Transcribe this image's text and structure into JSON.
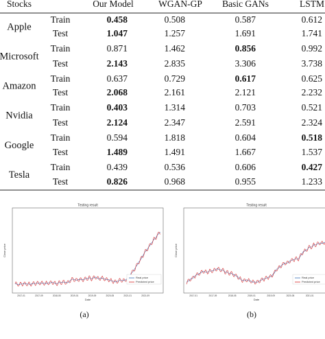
{
  "table": {
    "header": [
      "Stocks",
      "",
      "Our Model",
      "WGAN-GP",
      "Basic GANs",
      "LSTM"
    ],
    "rows": [
      {
        "stock": "Apple",
        "split": "Train",
        "values": [
          "0.458",
          "0.508",
          "0.587",
          "0.612"
        ],
        "bold": 0
      },
      {
        "split": "Test",
        "values": [
          "1.047",
          "1.257",
          "1.691",
          "1.741"
        ],
        "bold": 0
      },
      {
        "stock": "Microsoft",
        "split": "Train",
        "values": [
          "0.871",
          "1.462",
          "0.856",
          "0.992"
        ],
        "bold": 2
      },
      {
        "split": "Test",
        "values": [
          "2.143",
          "2.835",
          "3.306",
          "3.738"
        ],
        "bold": 0
      },
      {
        "stock": "Amazon",
        "split": "Train",
        "values": [
          "0.637",
          "0.729",
          "0.617",
          "0.625"
        ],
        "bold": 2
      },
      {
        "split": "Test",
        "values": [
          "2.068",
          "2.161",
          "2.121",
          "2.232"
        ],
        "bold": 0
      },
      {
        "stock": "Nvidia",
        "split": "Train",
        "values": [
          "0.403",
          "1.314",
          "0.703",
          "0.521"
        ],
        "bold": 0
      },
      {
        "split": "Test",
        "values": [
          "2.124",
          "2.347",
          "2.591",
          "2.324"
        ],
        "bold": 0
      },
      {
        "stock": "Google",
        "split": "Train",
        "values": [
          "0.594",
          "1.818",
          "0.604",
          "0.518"
        ],
        "bold": 3
      },
      {
        "split": "Test",
        "values": [
          "1.489",
          "1.491",
          "1.667",
          "1.537"
        ],
        "bold": 0
      },
      {
        "stock": "Tesla",
        "split": "Train",
        "values": [
          "0.439",
          "0.536",
          "0.606",
          "0.427"
        ],
        "bold": 3
      },
      {
        "split": "Test",
        "values": [
          "0.826",
          "0.968",
          "0.955",
          "1.233"
        ],
        "bold": 0
      }
    ]
  },
  "figures": [
    {
      "title": "Testing result",
      "legend": [
        "Real price",
        "Predicted price"
      ],
      "x_label": "Date",
      "y_label": "Close price",
      "x_ticks": [
        "2017-01",
        "2017-09",
        "2018-05",
        "2019-01",
        "2019-09",
        "2020-05",
        "2021-01",
        "2021-09"
      ],
      "caption": "(a)"
    },
    {
      "title": "Testing result",
      "legend": [
        "Real price",
        "Predicted price"
      ],
      "x_label": "Date",
      "y_label": "Close price",
      "x_ticks": [
        "2017-01",
        "2017-09",
        "2018-05",
        "2019-01",
        "2019-09",
        "2020-05",
        "2021-01"
      ],
      "caption": "(b)"
    }
  ]
}
